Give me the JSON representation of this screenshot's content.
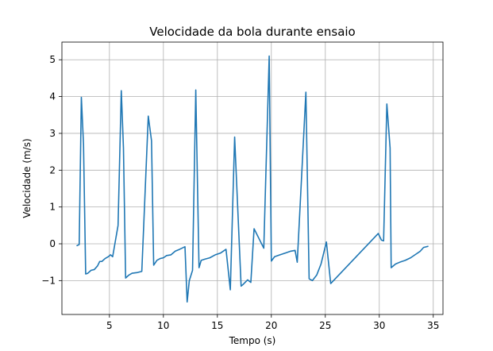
{
  "chart_data": {
    "type": "line",
    "title": "Velocidade da bola durante ensaio",
    "xlabel": "Tempo (s)",
    "ylabel": "Velocidade (m/s)",
    "xlim": [
      0.6,
      35.9
    ],
    "ylim": [
      -1.92,
      5.48
    ],
    "xticks": [
      5,
      10,
      15,
      20,
      25,
      30,
      35
    ],
    "yticks": [
      -1,
      0,
      1,
      2,
      3,
      4,
      5
    ],
    "grid": true,
    "series": [
      {
        "color": "#1f77b4",
        "x": [
          2.0,
          2.2,
          2.4,
          2.6,
          2.8,
          3.0,
          3.3,
          3.6,
          3.9,
          4.1,
          4.3,
          4.6,
          4.9,
          5.1,
          5.3,
          5.8,
          6.1,
          6.3,
          6.5,
          6.8,
          7.1,
          7.6,
          8.0,
          8.6,
          8.9,
          9.1,
          9.4,
          9.7,
          10.0,
          10.3,
          10.7,
          11.1,
          11.5,
          12.0,
          12.2,
          12.4,
          12.7,
          13.0,
          13.3,
          13.5,
          13.8,
          14.3,
          14.8,
          15.3,
          15.8,
          16.2,
          16.6,
          17.2,
          17.4,
          17.8,
          18.1,
          18.4,
          19.3,
          19.8,
          20.0,
          20.3,
          20.8,
          21.3,
          21.8,
          22.2,
          22.4,
          23.2,
          23.5,
          23.8,
          24.2,
          24.6,
          25.1,
          25.5,
          29.9,
          30.2,
          30.4,
          30.7,
          31.0,
          31.1,
          31.5,
          31.9,
          32.4,
          32.9,
          33.4,
          33.8,
          34.1,
          34.5
        ],
        "y": [
          -0.05,
          -0.02,
          3.98,
          2.7,
          -0.82,
          -0.8,
          -0.72,
          -0.7,
          -0.6,
          -0.48,
          -0.48,
          -0.4,
          -0.35,
          -0.3,
          -0.35,
          0.5,
          4.16,
          2.6,
          -0.93,
          -0.85,
          -0.8,
          -0.78,
          -0.75,
          3.47,
          2.8,
          -0.58,
          -0.45,
          -0.4,
          -0.38,
          -0.32,
          -0.3,
          -0.2,
          -0.15,
          -0.08,
          -1.58,
          -1.0,
          -0.72,
          4.18,
          -0.65,
          -0.45,
          -0.42,
          -0.38,
          -0.3,
          -0.25,
          -0.15,
          -1.25,
          2.9,
          -1.15,
          -1.1,
          -0.98,
          -1.05,
          0.41,
          -0.12,
          5.1,
          -0.47,
          -0.35,
          -0.3,
          -0.25,
          -0.2,
          -0.18,
          -0.5,
          4.12,
          -0.95,
          -1.0,
          -0.85,
          -0.55,
          0.05,
          -1.08,
          0.28,
          0.1,
          0.08,
          3.8,
          2.6,
          -0.65,
          -0.55,
          -0.5,
          -0.45,
          -0.38,
          -0.28,
          -0.2,
          -0.1,
          -0.07
        ]
      }
    ]
  }
}
